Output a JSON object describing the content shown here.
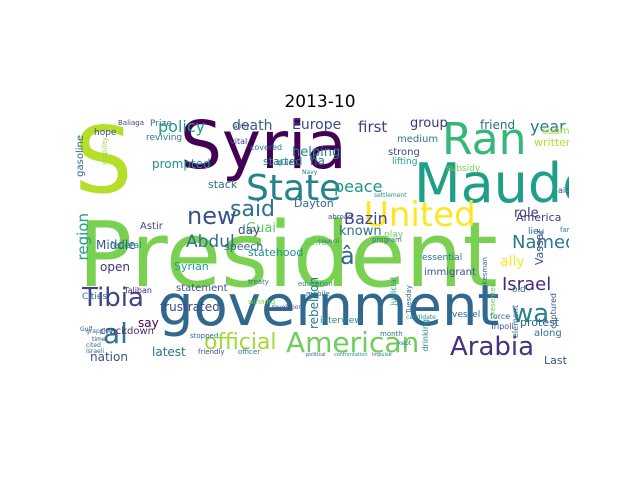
{
  "title": "2013-10",
  "words": [
    {
      "text": "President",
      "color": "#7ad151"
    },
    {
      "text": "Syria",
      "color": "#440154"
    },
    {
      "text": "S",
      "color": "#b5de2b"
    },
    {
      "text": "government",
      "color": "#31688e"
    },
    {
      "text": "Maude",
      "color": "#1f9e89"
    },
    {
      "text": "Ran",
      "color": "#35b779"
    },
    {
      "text": "State",
      "color": "#26828e"
    },
    {
      "text": "United",
      "color": "#fde725"
    },
    {
      "text": "American",
      "color": "#6ece58"
    },
    {
      "text": "Arabia",
      "color": "#46327e"
    },
    {
      "text": "Tibia",
      "color": "#414487"
    },
    {
      "text": "al",
      "color": "#2a788e"
    },
    {
      "text": "wa",
      "color": "#26828e"
    },
    {
      "text": "said",
      "color": "#2c728e"
    },
    {
      "text": "new",
      "color": "#3b528b"
    },
    {
      "text": "official",
      "color": "#a0da39"
    },
    {
      "text": "Israel",
      "color": "#482878"
    },
    {
      "text": "Named",
      "color": "#2a788e"
    },
    {
      "text": "â",
      "color": "#31688e"
    },
    {
      "text": "Abdul",
      "color": "#2c728e"
    },
    {
      "text": "Bazin",
      "color": "#3e4989"
    },
    {
      "text": "policy",
      "color": "#1f9e89"
    },
    {
      "text": "death",
      "color": "#355f8d"
    },
    {
      "text": "peace",
      "color": "#21918c"
    },
    {
      "text": "region",
      "color": "#1fa187"
    },
    {
      "text": "first",
      "color": "#433e85"
    },
    {
      "text": "year",
      "color": "#2a788e"
    },
    {
      "text": "Europe",
      "color": "#3e4989"
    },
    {
      "text": "helping",
      "color": "#25858e"
    },
    {
      "text": "Guai",
      "color": "#5ec962"
    },
    {
      "text": "known",
      "color": "#2d708e"
    },
    {
      "text": "role",
      "color": "#443983"
    },
    {
      "text": "group",
      "color": "#46327e"
    },
    {
      "text": "friend",
      "color": "#31688e"
    },
    {
      "text": "Middle",
      "color": "#3b528b"
    },
    {
      "text": "prompted",
      "color": "#21918c"
    },
    {
      "text": "frustrated",
      "color": "#3e4989"
    },
    {
      "text": "open",
      "color": "#472d7b"
    },
    {
      "text": "say",
      "color": "#440154"
    },
    {
      "text": "latest",
      "color": "#2c728e"
    },
    {
      "text": "nation",
      "color": "#3b528b"
    },
    {
      "text": "day",
      "color": "#3e4989"
    },
    {
      "text": "speech",
      "color": "#31688e"
    },
    {
      "text": "stack",
      "color": "#2c728e"
    },
    {
      "text": "Syrian",
      "color": "#1f9e89"
    },
    {
      "text": "statement",
      "color": "#3b528b"
    },
    {
      "text": "crackdown",
      "color": "#482878"
    },
    {
      "text": "rebellion",
      "color": "#2a788e"
    },
    {
      "text": "statehood",
      "color": "#21918c"
    },
    {
      "text": "America",
      "color": "#443983"
    },
    {
      "text": "Vassar",
      "color": "#3b528b"
    },
    {
      "text": "started",
      "color": "#21918c"
    },
    {
      "text": "Dayton",
      "color": "#31688e"
    },
    {
      "text": "ha",
      "color": "#2a788e"
    },
    {
      "text": "Last",
      "color": "#3b528b"
    },
    {
      "text": "along",
      "color": "#2c728e"
    },
    {
      "text": "protest",
      "color": "#31688e"
    },
    {
      "text": "written",
      "color": "#b5de2b"
    },
    {
      "text": "submit",
      "color": "#a0da39"
    },
    {
      "text": "essential",
      "color": "#2c728e"
    },
    {
      "text": "immigrant",
      "color": "#3b528b"
    },
    {
      "text": "vessel",
      "color": "#31688e"
    },
    {
      "text": "interview",
      "color": "#25858e"
    },
    {
      "text": "strong",
      "color": "#3e4989"
    },
    {
      "text": "medium",
      "color": "#2a788e"
    },
    {
      "text": "Ohio",
      "color": "#5ec962"
    },
    {
      "text": "Cities",
      "color": "#2c728e"
    },
    {
      "text": "gasoline",
      "color": "#31688e"
    },
    {
      "text": "Astir",
      "color": "#3e4989"
    },
    {
      "text": "federal",
      "color": "#21918c"
    },
    {
      "text": "Prize",
      "color": "#2c728e"
    },
    {
      "text": "hope",
      "color": "#3b528b"
    },
    {
      "text": "reviving",
      "color": "#2a788e"
    },
    {
      "text": "Taliban",
      "color": "#482878"
    },
    {
      "text": "lifting",
      "color": "#1f9e89"
    },
    {
      "text": "subsidy",
      "color": "#7ad151"
    },
    {
      "text": "element",
      "color": "#31688e"
    },
    {
      "text": "captured",
      "color": "#3b528b"
    },
    {
      "text": "family",
      "color": "#26828e"
    },
    {
      "text": "lieu",
      "color": "#2c728e"
    },
    {
      "text": "aid",
      "color": "#3e4989"
    },
    {
      "text": "ally",
      "color": "#fde725"
    },
    {
      "text": "old",
      "color": "#2a788e"
    },
    {
      "text": "force",
      "color": "#31688e"
    },
    {
      "text": "Tripoli",
      "color": "#3b528b"
    },
    {
      "text": "judicial",
      "color": "#21918c"
    },
    {
      "text": "play",
      "color": "#6ece58"
    },
    {
      "text": "covered",
      "color": "#2c728e"
    },
    {
      "text": "quiet",
      "color": "#31688e"
    },
    {
      "text": "vital",
      "color": "#3e4989"
    },
    {
      "text": "army",
      "color": "#443983"
    },
    {
      "text": "mobile",
      "color": "#2a788e"
    },
    {
      "text": "education",
      "color": "#21918c"
    },
    {
      "text": "treaty",
      "color": "#2c728e"
    },
    {
      "text": "winning",
      "color": "#7ad151"
    },
    {
      "text": "stopped",
      "color": "#31688e"
    },
    {
      "text": "friendly",
      "color": "#3b528b"
    },
    {
      "text": "officer",
      "color": "#2c728e"
    },
    {
      "text": "abroad",
      "color": "#3e4989"
    },
    {
      "text": "Navy",
      "color": "#2a788e"
    },
    {
      "text": "drinking",
      "color": "#21918c"
    },
    {
      "text": "Tuesday",
      "color": "#31688e"
    },
    {
      "text": "month",
      "color": "#2c728e"
    },
    {
      "text": "political",
      "color": "#3b528b"
    },
    {
      "text": "confrontation",
      "color": "#21918c"
    },
    {
      "text": "impulse",
      "color": "#2c728e"
    },
    {
      "text": "presented",
      "color": "#5ec962"
    },
    {
      "text": "spokesman",
      "color": "#31688e"
    },
    {
      "text": "Baliaga",
      "color": "#3e4989"
    },
    {
      "text": "grappled",
      "color": "#2a788e"
    },
    {
      "text": "revolution",
      "color": "#3b528b"
    },
    {
      "text": "candidate",
      "color": "#21918c"
    },
    {
      "text": "kept",
      "color": "#2c728e"
    },
    {
      "text": "Israeli",
      "color": "#31688e"
    },
    {
      "text": "time",
      "color": "#3e4989"
    },
    {
      "text": "cited",
      "color": "#2c728e"
    },
    {
      "text": "stability",
      "color": "#a0da39"
    },
    {
      "text": "Gulf",
      "color": "#3b528b"
    },
    {
      "text": "settlement",
      "color": "#21918c"
    },
    {
      "text": "program",
      "color": "#2c728e"
    },
    {
      "text": "council",
      "color": "#31688e"
    }
  ]
}
